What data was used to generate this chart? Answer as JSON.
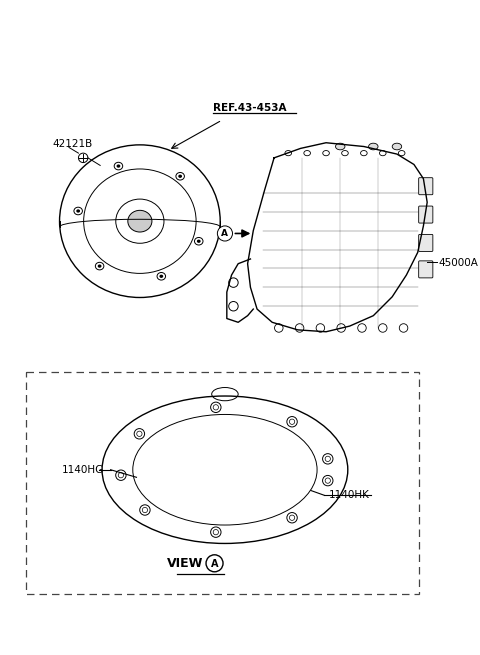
{
  "bg_color": "#ffffff",
  "text_color": "#000000",
  "fig_width": 4.8,
  "fig_height": 6.55,
  "dpi": 100,
  "labels": {
    "part_42121B": "42121B",
    "ref_label": "REF.43-453A",
    "part_45000A": "45000A",
    "part_1140HG": "1140HG",
    "part_1140HK": "1140HK",
    "view_label": "VIEW"
  },
  "view_circle_label": "A",
  "circle_label_A_top": "A"
}
